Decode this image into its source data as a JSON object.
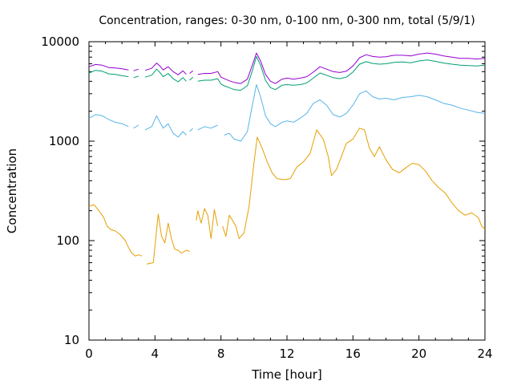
{
  "chart_data": {
    "type": "line",
    "title": "Concentration, ranges: 0-30 nm, 0-100 nm, 0-300 nm, total (5/9/1)",
    "xlabel": "Time [hour]",
    "ylabel": "Concentration",
    "xlim": [
      0,
      24
    ],
    "ylim": [
      10,
      10000
    ],
    "yscale": "log",
    "x_ticks": [
      0,
      4,
      8,
      12,
      16,
      20,
      24
    ],
    "x_tick_labels": [
      "0",
      "4",
      "8",
      "12",
      "16",
      "20",
      "24"
    ],
    "y_ticks": [
      10,
      100,
      1000,
      10000
    ],
    "y_tick_labels": [
      "10",
      "100",
      "1000",
      "10000"
    ],
    "grid": false,
    "legend": "none",
    "series": [
      {
        "color": "#9400d3",
        "points": [
          [
            0.0,
            5600
          ],
          [
            0.4,
            5900
          ],
          [
            0.8,
            5800
          ],
          [
            1.2,
            5500
          ],
          [
            1.6,
            5450
          ],
          [
            2.0,
            5350
          ],
          [
            2.4,
            5200
          ],
          [
            2.6,
            null
          ],
          [
            2.7,
            5100
          ],
          [
            3.0,
            5300
          ],
          [
            3.2,
            null
          ],
          [
            3.4,
            5150
          ],
          [
            3.8,
            5400
          ],
          [
            4.1,
            6100
          ],
          [
            4.3,
            5700
          ],
          [
            4.5,
            5200
          ],
          [
            4.8,
            5600
          ],
          [
            5.1,
            5000
          ],
          [
            5.4,
            4650
          ],
          [
            5.7,
            5100
          ],
          [
            5.9,
            4700
          ],
          [
            6.0,
            null
          ],
          [
            6.1,
            4800
          ],
          [
            6.3,
            5100
          ],
          [
            6.4,
            null
          ],
          [
            6.6,
            4700
          ],
          [
            7.0,
            4800
          ],
          [
            7.4,
            4800
          ],
          [
            7.8,
            5000
          ],
          [
            8.0,
            4400
          ],
          [
            8.2,
            4250
          ],
          [
            8.5,
            4050
          ],
          [
            8.8,
            3900
          ],
          [
            9.2,
            3800
          ],
          [
            9.6,
            4200
          ],
          [
            9.9,
            5800
          ],
          [
            10.15,
            7700
          ],
          [
            10.4,
            6400
          ],
          [
            10.7,
            4700
          ],
          [
            11.0,
            4000
          ],
          [
            11.3,
            3800
          ],
          [
            11.7,
            4200
          ],
          [
            12.0,
            4300
          ],
          [
            12.4,
            4200
          ],
          [
            12.8,
            4300
          ],
          [
            13.2,
            4450
          ],
          [
            13.6,
            4950
          ],
          [
            14.0,
            5600
          ],
          [
            14.4,
            5300
          ],
          [
            14.8,
            5000
          ],
          [
            15.2,
            4900
          ],
          [
            15.6,
            5050
          ],
          [
            16.0,
            5700
          ],
          [
            16.4,
            6900
          ],
          [
            16.8,
            7400
          ],
          [
            17.2,
            7100
          ],
          [
            17.6,
            7000
          ],
          [
            18.0,
            7050
          ],
          [
            18.5,
            7300
          ],
          [
            19.0,
            7300
          ],
          [
            19.5,
            7200
          ],
          [
            20.0,
            7500
          ],
          [
            20.5,
            7700
          ],
          [
            21.0,
            7500
          ],
          [
            21.5,
            7200
          ],
          [
            22.0,
            7000
          ],
          [
            22.5,
            6800
          ],
          [
            23.0,
            6800
          ],
          [
            23.5,
            6700
          ],
          [
            24.0,
            6800
          ]
        ]
      },
      {
        "color": "#009e73",
        "points": [
          [
            0.0,
            4850
          ],
          [
            0.4,
            5150
          ],
          [
            0.8,
            5050
          ],
          [
            1.2,
            4750
          ],
          [
            1.6,
            4700
          ],
          [
            2.0,
            4550
          ],
          [
            2.4,
            4450
          ],
          [
            2.6,
            null
          ],
          [
            2.7,
            4350
          ],
          [
            3.0,
            4500
          ],
          [
            3.2,
            null
          ],
          [
            3.4,
            4400
          ],
          [
            3.8,
            4600
          ],
          [
            4.1,
            5300
          ],
          [
            4.3,
            4900
          ],
          [
            4.5,
            4450
          ],
          [
            4.8,
            4800
          ],
          [
            5.1,
            4250
          ],
          [
            5.4,
            3950
          ],
          [
            5.7,
            4350
          ],
          [
            5.9,
            4000
          ],
          [
            6.0,
            null
          ],
          [
            6.1,
            4100
          ],
          [
            6.3,
            4400
          ],
          [
            6.4,
            null
          ],
          [
            6.6,
            4000
          ],
          [
            7.0,
            4100
          ],
          [
            7.4,
            4100
          ],
          [
            7.8,
            4250
          ],
          [
            8.0,
            3750
          ],
          [
            8.2,
            3600
          ],
          [
            8.5,
            3450
          ],
          [
            8.8,
            3300
          ],
          [
            9.2,
            3250
          ],
          [
            9.6,
            3600
          ],
          [
            9.9,
            5100
          ],
          [
            10.15,
            7100
          ],
          [
            10.4,
            5800
          ],
          [
            10.7,
            4100
          ],
          [
            11.0,
            3450
          ],
          [
            11.3,
            3300
          ],
          [
            11.7,
            3650
          ],
          [
            12.0,
            3700
          ],
          [
            12.4,
            3650
          ],
          [
            12.8,
            3700
          ],
          [
            13.2,
            3850
          ],
          [
            13.6,
            4300
          ],
          [
            14.0,
            4850
          ],
          [
            14.4,
            4600
          ],
          [
            14.8,
            4350
          ],
          [
            15.2,
            4250
          ],
          [
            15.6,
            4400
          ],
          [
            16.0,
            4950
          ],
          [
            16.4,
            5950
          ],
          [
            16.8,
            6300
          ],
          [
            17.2,
            6050
          ],
          [
            17.6,
            5950
          ],
          [
            18.0,
            6000
          ],
          [
            18.5,
            6200
          ],
          [
            19.0,
            6250
          ],
          [
            19.5,
            6150
          ],
          [
            20.0,
            6400
          ],
          [
            20.5,
            6550
          ],
          [
            21.0,
            6350
          ],
          [
            21.5,
            6100
          ],
          [
            22.0,
            5950
          ],
          [
            22.5,
            5800
          ],
          [
            23.0,
            5750
          ],
          [
            23.5,
            5700
          ],
          [
            24.0,
            5800
          ]
        ]
      },
      {
        "color": "#56b4e9",
        "points": [
          [
            0.0,
            1700
          ],
          [
            0.4,
            1850
          ],
          [
            0.8,
            1800
          ],
          [
            1.2,
            1650
          ],
          [
            1.6,
            1550
          ],
          [
            2.0,
            1500
          ],
          [
            2.4,
            1400
          ],
          [
            2.6,
            null
          ],
          [
            2.7,
            1350
          ],
          [
            3.0,
            1450
          ],
          [
            3.2,
            null
          ],
          [
            3.4,
            1300
          ],
          [
            3.8,
            1400
          ],
          [
            4.1,
            1800
          ],
          [
            4.3,
            1550
          ],
          [
            4.5,
            1350
          ],
          [
            4.8,
            1500
          ],
          [
            5.1,
            1200
          ],
          [
            5.4,
            1100
          ],
          [
            5.7,
            1250
          ],
          [
            5.9,
            1150
          ],
          [
            6.0,
            null
          ],
          [
            6.1,
            1250
          ],
          [
            6.3,
            1350
          ],
          [
            6.4,
            null
          ],
          [
            6.6,
            1300
          ],
          [
            7.0,
            1400
          ],
          [
            7.4,
            1350
          ],
          [
            7.8,
            1450
          ],
          [
            8.0,
            null
          ],
          [
            8.2,
            1150
          ],
          [
            8.5,
            1200
          ],
          [
            8.8,
            1050
          ],
          [
            9.2,
            1000
          ],
          [
            9.6,
            1250
          ],
          [
            9.9,
            2300
          ],
          [
            10.15,
            3700
          ],
          [
            10.4,
            2800
          ],
          [
            10.7,
            1800
          ],
          [
            11.0,
            1500
          ],
          [
            11.3,
            1400
          ],
          [
            11.7,
            1550
          ],
          [
            12.0,
            1600
          ],
          [
            12.4,
            1550
          ],
          [
            12.8,
            1700
          ],
          [
            13.2,
            1900
          ],
          [
            13.6,
            2400
          ],
          [
            14.0,
            2600
          ],
          [
            14.4,
            2300
          ],
          [
            14.8,
            1850
          ],
          [
            15.2,
            1750
          ],
          [
            15.6,
            1900
          ],
          [
            16.0,
            2300
          ],
          [
            16.4,
            3000
          ],
          [
            16.8,
            3200
          ],
          [
            17.2,
            2800
          ],
          [
            17.6,
            2650
          ],
          [
            18.0,
            2700
          ],
          [
            18.5,
            2600
          ],
          [
            19.0,
            2750
          ],
          [
            19.5,
            2800
          ],
          [
            20.0,
            2900
          ],
          [
            20.5,
            2800
          ],
          [
            21.0,
            2600
          ],
          [
            21.5,
            2400
          ],
          [
            22.0,
            2300
          ],
          [
            22.5,
            2150
          ],
          [
            23.0,
            2050
          ],
          [
            23.5,
            1950
          ],
          [
            24.0,
            1900
          ]
        ]
      },
      {
        "color": "#e69f00",
        "points": [
          [
            0.0,
            220
          ],
          [
            0.3,
            230
          ],
          [
            0.6,
            200
          ],
          [
            0.9,
            170
          ],
          [
            1.1,
            140
          ],
          [
            1.3,
            130
          ],
          [
            1.6,
            125
          ],
          [
            1.9,
            115
          ],
          [
            2.2,
            100
          ],
          [
            2.4,
            85
          ],
          [
            2.6,
            75
          ],
          [
            2.8,
            70
          ],
          [
            3.0,
            72
          ],
          [
            3.2,
            70
          ],
          [
            3.4,
            null
          ],
          [
            3.5,
            58
          ],
          [
            3.9,
            60
          ],
          [
            4.1,
            130
          ],
          [
            4.2,
            185
          ],
          [
            4.4,
            110
          ],
          [
            4.6,
            95
          ],
          [
            4.8,
            150
          ],
          [
            5.0,
            105
          ],
          [
            5.2,
            82
          ],
          [
            5.4,
            80
          ],
          [
            5.6,
            75
          ],
          [
            5.9,
            80
          ],
          [
            6.1,
            78
          ],
          [
            6.2,
            null
          ],
          [
            6.5,
            160
          ],
          [
            6.6,
            200
          ],
          [
            6.8,
            150
          ],
          [
            7.0,
            210
          ],
          [
            7.2,
            180
          ],
          [
            7.4,
            105
          ],
          [
            7.6,
            205
          ],
          [
            7.8,
            140
          ],
          [
            7.9,
            null
          ],
          [
            8.1,
            140
          ],
          [
            8.3,
            110
          ],
          [
            8.5,
            180
          ],
          [
            8.7,
            160
          ],
          [
            8.9,
            140
          ],
          [
            9.1,
            105
          ],
          [
            9.4,
            120
          ],
          [
            9.7,
            220
          ],
          [
            10.0,
            600
          ],
          [
            10.2,
            1100
          ],
          [
            10.5,
            850
          ],
          [
            10.8,
            620
          ],
          [
            11.1,
            480
          ],
          [
            11.4,
            420
          ],
          [
            11.8,
            410
          ],
          [
            12.2,
            420
          ],
          [
            12.6,
            550
          ],
          [
            13.0,
            620
          ],
          [
            13.4,
            750
          ],
          [
            13.8,
            1300
          ],
          [
            14.2,
            1050
          ],
          [
            14.5,
            700
          ],
          [
            14.7,
            450
          ],
          [
            15.0,
            520
          ],
          [
            15.3,
            700
          ],
          [
            15.6,
            950
          ],
          [
            16.0,
            1050
          ],
          [
            16.4,
            1350
          ],
          [
            16.7,
            1300
          ],
          [
            17.0,
            850
          ],
          [
            17.3,
            700
          ],
          [
            17.6,
            880
          ],
          [
            18.0,
            650
          ],
          [
            18.4,
            520
          ],
          [
            18.8,
            480
          ],
          [
            19.2,
            540
          ],
          [
            19.6,
            600
          ],
          [
            20.0,
            580
          ],
          [
            20.4,
            500
          ],
          [
            20.8,
            400
          ],
          [
            21.2,
            340
          ],
          [
            21.6,
            300
          ],
          [
            22.0,
            240
          ],
          [
            22.4,
            200
          ],
          [
            22.8,
            180
          ],
          [
            23.2,
            190
          ],
          [
            23.6,
            170
          ],
          [
            23.8,
            140
          ],
          [
            24.0,
            130
          ]
        ]
      }
    ]
  }
}
